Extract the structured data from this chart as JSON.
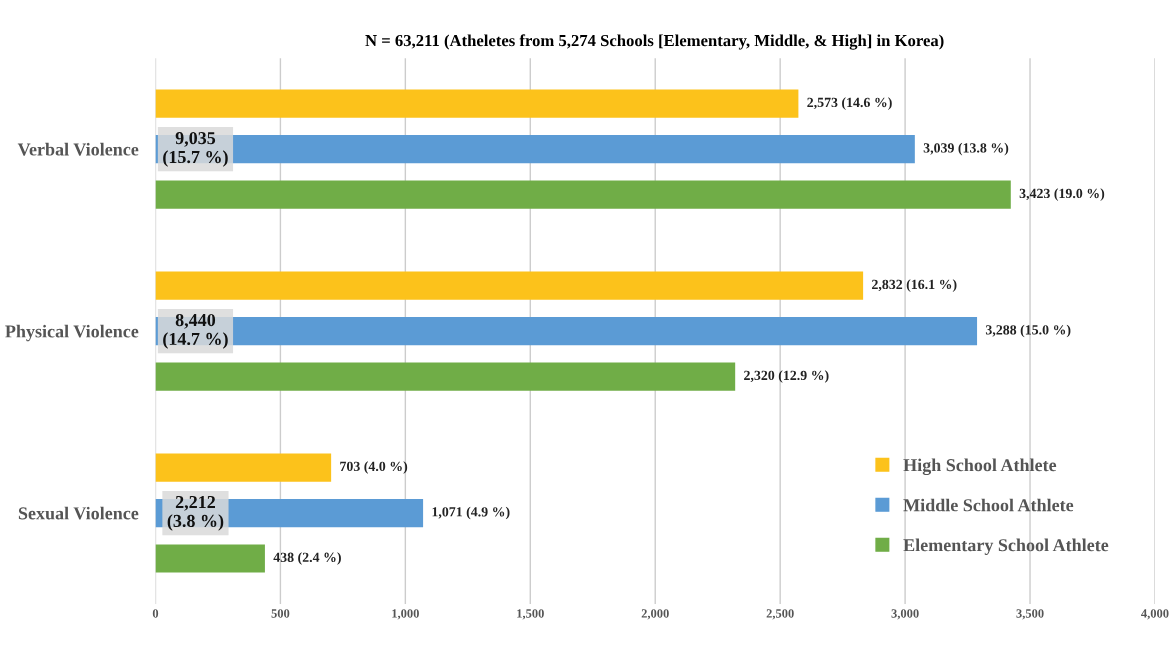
{
  "chart_data": {
    "type": "bar",
    "orientation": "horizontal",
    "title": "N = 63,211 (Atheletes from 5,274 Schools [Elementary, Middle, & High] in Korea)",
    "categories": [
      "Verbal Violence",
      "Physical Violence",
      "Sexual Violence"
    ],
    "series": [
      {
        "name": "High School Athlete",
        "color": "#fcc21b",
        "values": [
          2573,
          2832,
          703
        ],
        "value_labels": [
          "2,573 (14.6 %)",
          "2,832 (16.1 %)",
          "703 (4.0 %)"
        ]
      },
      {
        "name": "Middle School Athlete",
        "color": "#5b9bd5",
        "values": [
          3039,
          3288,
          1071
        ],
        "value_labels": [
          "3,039 (13.8 %)",
          "3,288 (15.0 %)",
          "1,071 (4.9 %)"
        ]
      },
      {
        "name": "Elementary School Athlete",
        "color": "#70ad47",
        "values": [
          3423,
          2320,
          438
        ],
        "value_labels": [
          "3,423 (19.0 %)",
          "2,320 (12.9 %)",
          "438 (2.4 %)"
        ]
      }
    ],
    "annotations": [
      "9,035\n(15.7 %)",
      "8,440\n(14.7 %)",
      "2,212\n(3.8 %)"
    ],
    "xlim": [
      0,
      4000
    ],
    "xticks": [
      0,
      500,
      {
        "value": 1000,
        "label": "1,000"
      },
      {
        "value": 1500,
        "label": "1,500"
      },
      {
        "value": 2000,
        "label": "2,000"
      },
      {
        "value": 2500,
        "label": "2,500"
      },
      {
        "value": 3000,
        "label": "3,000"
      },
      {
        "value": 3500,
        "label": "3,500"
      },
      {
        "value": 4000,
        "label": "4,000"
      }
    ],
    "grid": "x",
    "legend": "bottom right"
  }
}
